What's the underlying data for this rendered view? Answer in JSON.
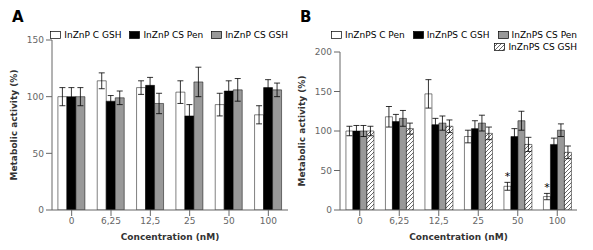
{
  "chart_data": [
    {
      "type": "bar",
      "title": "A",
      "x_label": "Concentration (nM)",
      "y_label": "Metabolic activity (%)",
      "categories": [
        "0",
        "6,25",
        "12,5",
        "25",
        "50",
        "100"
      ],
      "ylim": [
        0,
        150
      ],
      "yticks": [
        0,
        50,
        100,
        150
      ],
      "grid": false,
      "legend": "upper right",
      "series": [
        {
          "name": "InZnP C GSH",
          "color": "white",
          "values": [
            100,
            114,
            108,
            104,
            93,
            84
          ],
          "errors": [
            8,
            7,
            6,
            10,
            10,
            8
          ]
        },
        {
          "name": "InZnP CS Pen",
          "color": "black",
          "values": [
            100,
            96,
            110,
            83,
            105,
            108
          ],
          "errors": [
            8,
            5,
            7,
            10,
            9,
            7
          ]
        },
        {
          "name": "InZnP CS GSH",
          "color": "#999999",
          "values": [
            100,
            99,
            94,
            113,
            106,
            106
          ],
          "errors": [
            8,
            6,
            9,
            13,
            10,
            6
          ]
        }
      ]
    },
    {
      "type": "bar",
      "title": "B",
      "x_label": "Concentration (nM)",
      "y_label": "Metabolic activity (%)",
      "categories": [
        "0",
        "6,25",
        "12,5",
        "25",
        "50",
        "100"
      ],
      "ylim": [
        0,
        200
      ],
      "yticks": [
        0,
        50,
        100,
        150,
        200
      ],
      "grid": false,
      "legend": "upper right",
      "series": [
        {
          "name": "InZnPS C Pen",
          "color": "white",
          "values": [
            100,
            118,
            147,
            93,
            30,
            17
          ],
          "errors": [
            6,
            13,
            18,
            8,
            5,
            4
          ]
        },
        {
          "name": "InZnPS C GSH",
          "color": "black",
          "values": [
            100,
            112,
            108,
            103,
            93,
            83
          ],
          "errors": [
            7,
            9,
            8,
            10,
            10,
            8
          ]
        },
        {
          "name": "InZnPS CS Pen",
          "color": "#999999",
          "values": [
            100,
            116,
            110,
            110,
            113,
            101
          ],
          "errors": [
            7,
            10,
            9,
            10,
            12,
            8
          ]
        },
        {
          "name": "InZnPS CS GSH",
          "color": "white",
          "values": [
            100,
            103,
            106,
            97,
            83,
            73
          ],
          "errors": [
            6,
            7,
            8,
            8,
            9,
            8
          ]
        }
      ],
      "annotations": [
        {
          "text": "*",
          "series": "InZnPS C Pen",
          "category": "50"
        },
        {
          "text": "*",
          "series": "InZnPS C Pen",
          "category": "100"
        }
      ]
    }
  ]
}
